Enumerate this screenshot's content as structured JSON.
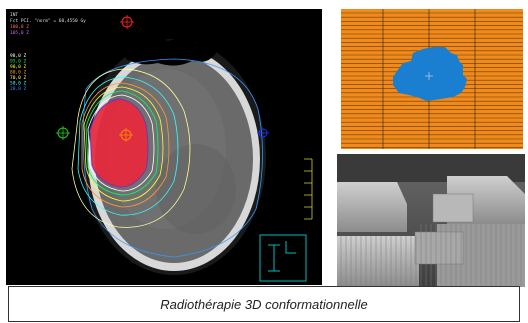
{
  "ct_view": {
    "header_line1": "INT",
    "header_line2": "Fct PCI. \"norm\" = 60,4550 Gy",
    "header_line3": "100,0 Z",
    "header_line4": "105,0 Z",
    "isodose_legend": [
      {
        "label": "98,0 Z",
        "color": "#ffffff"
      },
      {
        "label": "95,0 Z",
        "color": "#00ff66"
      },
      {
        "label": "90,0 Z",
        "color": "#ffff33"
      },
      {
        "label": "80,0 Z",
        "color": "#ff9933"
      },
      {
        "label": "70,0 Z",
        "color": "#ffff99"
      },
      {
        "label": "50,0 Z",
        "color": "#33ffff"
      },
      {
        "label": "20,0 Z",
        "color": "#3388ff"
      }
    ],
    "colors": {
      "ptv_fill": "#e8283c",
      "isocenter": "#ff8a00",
      "body_contour": "#3399ff",
      "reference_mark_top": "#ff2222",
      "reference_mark_left": "#22cc22",
      "reference_mark_right": "#2233ff",
      "orientation_cube": "#00bbbb"
    }
  },
  "mlc_view": {
    "colors": {
      "background": "#f08a1c",
      "field": "#1a7fd0",
      "leaf_line": "#6b3a00",
      "crosshair": "#222222"
    }
  },
  "photo_view": {
    "subject": "multileaf-collimator-photo"
  },
  "caption": {
    "text": "Radiothérapie 3D conformationnelle"
  }
}
